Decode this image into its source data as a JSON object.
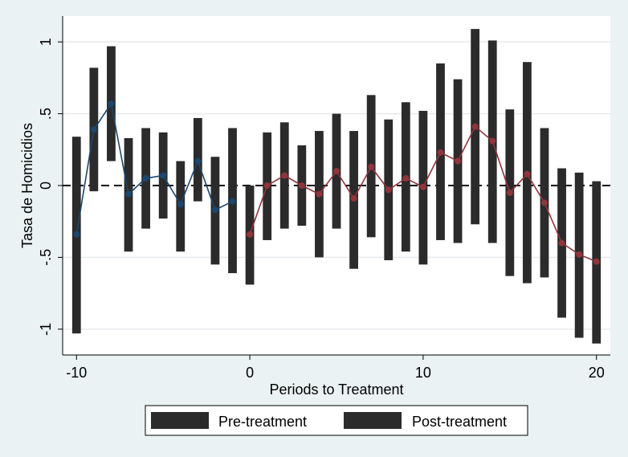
{
  "colors": {
    "outer_bg": "#eaf2f3",
    "plot_bg": "#ffffff",
    "gridline": "#e6eaed",
    "bar": "#2b2b2b",
    "pre_line": "#1a476f",
    "post_line": "#90353b",
    "zero_line": "#000000"
  },
  "chart_data": {
    "type": "line",
    "title": "",
    "xlabel": "Periods to Treatment",
    "ylabel": "Tasa de Homicidios",
    "xlim": [
      -10.8,
      20.8
    ],
    "ylim": [
      -1.18,
      1.18
    ],
    "xticks": [
      {
        "value": -10,
        "label": "-10"
      },
      {
        "value": 0,
        "label": "0"
      },
      {
        "value": 10,
        "label": "10"
      },
      {
        "value": 20,
        "label": "20"
      }
    ],
    "yticks": [
      {
        "value": 1,
        "label": "1"
      },
      {
        "value": 0.5,
        "label": ".5"
      },
      {
        "value": 0,
        "label": "0"
      },
      {
        "value": -0.5,
        "label": "-.5"
      },
      {
        "value": -1,
        "label": "-1"
      }
    ],
    "grid": true,
    "reference_line_y": 0,
    "legend": {
      "position": "bottom",
      "entries": [
        {
          "label": "Pre-treatment"
        },
        {
          "label": "Post-treatment"
        }
      ]
    },
    "series": [
      {
        "name": "Pre-treatment",
        "x": [
          -10,
          -9,
          -8,
          -7,
          -6,
          -5,
          -4,
          -3,
          -2,
          -1
        ],
        "y": [
          -0.34,
          0.39,
          0.57,
          -0.06,
          0.05,
          0.07,
          -0.13,
          0.17,
          -0.17,
          -0.11
        ],
        "ci_low": [
          -1.03,
          -0.04,
          0.17,
          -0.46,
          -0.3,
          -0.23,
          -0.46,
          -0.11,
          -0.55,
          -0.61
        ],
        "ci_high": [
          0.34,
          0.82,
          0.97,
          0.33,
          0.4,
          0.37,
          0.17,
          0.47,
          0.2,
          0.4
        ]
      },
      {
        "name": "Post-treatment",
        "x": [
          0,
          1,
          2,
          3,
          4,
          5,
          6,
          7,
          8,
          9,
          10,
          11,
          12,
          13,
          14,
          15,
          16,
          17,
          18,
          19,
          20
        ],
        "y": [
          -0.34,
          0.0,
          0.07,
          0.0,
          -0.06,
          0.1,
          -0.09,
          0.13,
          -0.03,
          0.05,
          -0.01,
          0.23,
          0.17,
          0.41,
          0.31,
          -0.05,
          0.08,
          -0.12,
          -0.4,
          -0.48,
          -0.53
        ],
        "ci_low": [
          -0.69,
          -0.38,
          -0.3,
          -0.28,
          -0.5,
          -0.3,
          -0.58,
          -0.36,
          -0.52,
          -0.46,
          -0.55,
          -0.38,
          -0.4,
          -0.27,
          -0.4,
          -0.63,
          -0.68,
          -0.64,
          -0.92,
          -1.06,
          -1.1
        ],
        "ci_high": [
          0.0,
          0.37,
          0.44,
          0.28,
          0.38,
          0.5,
          0.38,
          0.63,
          0.46,
          0.58,
          0.52,
          0.85,
          0.74,
          1.09,
          1.01,
          0.53,
          0.86,
          0.4,
          0.12,
          0.09,
          0.03
        ]
      }
    ]
  }
}
